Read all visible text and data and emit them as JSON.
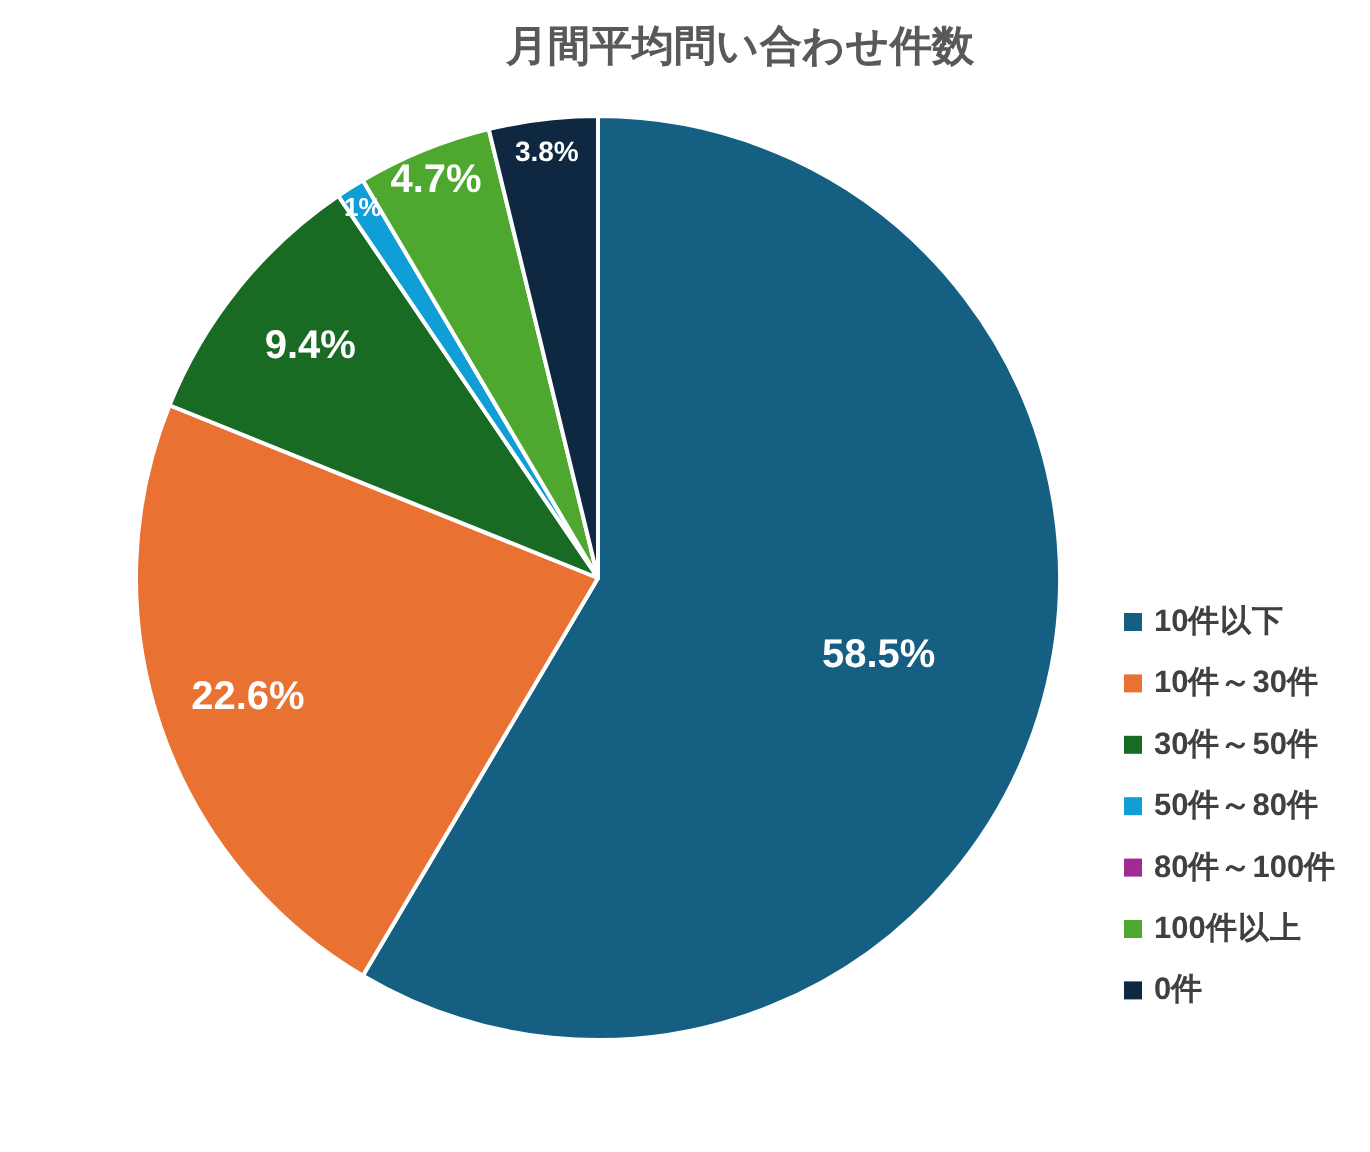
{
  "chart_data": {
    "type": "pie",
    "title": "月間平均問い合わせ件数",
    "categories": [
      "10件以下",
      "10件～30件",
      "30件～50件",
      "50件～80件",
      "80件～100件",
      "100件以上",
      "0件"
    ],
    "values": [
      58.5,
      22.6,
      9.4,
      1,
      0,
      4.7,
      3.8
    ],
    "colors": [
      "#156082",
      "#e97132",
      "#196b24",
      "#0f9ed5",
      "#a02b93",
      "#4ea72e",
      "#0e2841"
    ],
    "value_labels": [
      "58.5%",
      "22.6%",
      "9.4%",
      "1%",
      null,
      "4.7%",
      "3.8%"
    ],
    "legend": "right"
  }
}
